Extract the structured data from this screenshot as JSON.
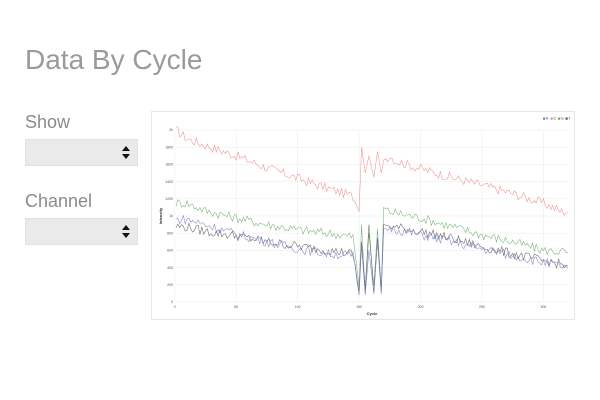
{
  "page": {
    "title": "Data By Cycle"
  },
  "controls": {
    "show": {
      "label": "Show",
      "value": ""
    },
    "channel": {
      "label": "Channel",
      "value": ""
    }
  },
  "colors": {
    "A": "#7777cc",
    "C": "#ee8888",
    "G": "#66aa66",
    "T": "#555555",
    "grid": "#eeeeee"
  },
  "chart_data": {
    "type": "line",
    "title": "",
    "xlabel": "Cycle",
    "ylabel": "Intensity",
    "xlim": [
      1,
      320
    ],
    "ylim": [
      0,
      2000
    ],
    "x_ticks": [
      0,
      50,
      100,
      150,
      200,
      250,
      300
    ],
    "y_ticks": [
      0,
      200,
      400,
      600,
      800,
      1000,
      1200,
      1400,
      1600,
      1800,
      2000
    ],
    "y_tick_labels": [
      "0",
      "200",
      "400",
      "600",
      "800",
      "1k",
      "1200",
      "1400",
      "1600",
      "1800",
      "2k"
    ],
    "legend": {
      "position": "top-right",
      "entries": [
        "A",
        "C",
        "G",
        "T"
      ]
    },
    "series": [
      {
        "name": "C",
        "color": "#ee8888",
        "points": [
          [
            1,
            2000
          ],
          [
            10,
            1900
          ],
          [
            25,
            1820
          ],
          [
            50,
            1700
          ],
          [
            75,
            1560
          ],
          [
            100,
            1440
          ],
          [
            125,
            1320
          ],
          [
            145,
            1230
          ],
          [
            150,
            1050
          ],
          [
            152,
            1800
          ],
          [
            155,
            1500
          ],
          [
            158,
            1700
          ],
          [
            162,
            1450
          ],
          [
            165,
            1750
          ],
          [
            168,
            1500
          ],
          [
            170,
            1650
          ],
          [
            175,
            1700
          ],
          [
            180,
            1640
          ],
          [
            200,
            1550
          ],
          [
            225,
            1450
          ],
          [
            250,
            1360
          ],
          [
            275,
            1260
          ],
          [
            300,
            1150
          ],
          [
            315,
            1050
          ],
          [
            320,
            1050
          ]
        ]
      },
      {
        "name": "G",
        "color": "#66aa66",
        "points": [
          [
            1,
            1150
          ],
          [
            10,
            1150
          ],
          [
            25,
            1060
          ],
          [
            50,
            980
          ],
          [
            75,
            900
          ],
          [
            100,
            840
          ],
          [
            125,
            800
          ],
          [
            145,
            760
          ],
          [
            150,
            180
          ],
          [
            152,
            900
          ],
          [
            155,
            100
          ],
          [
            158,
            800
          ],
          [
            162,
            200
          ],
          [
            165,
            850
          ],
          [
            168,
            150
          ],
          [
            170,
            1100
          ],
          [
            175,
            1050
          ],
          [
            200,
            980
          ],
          [
            225,
            880
          ],
          [
            250,
            780
          ],
          [
            275,
            700
          ],
          [
            300,
            600
          ],
          [
            320,
            580
          ]
        ]
      },
      {
        "name": "T",
        "color": "#555555",
        "points": [
          [
            1,
            880
          ],
          [
            10,
            870
          ],
          [
            25,
            820
          ],
          [
            50,
            770
          ],
          [
            75,
            700
          ],
          [
            100,
            650
          ],
          [
            125,
            600
          ],
          [
            145,
            560
          ],
          [
            150,
            120
          ],
          [
            152,
            700
          ],
          [
            155,
            150
          ],
          [
            158,
            900
          ],
          [
            162,
            100
          ],
          [
            165,
            750
          ],
          [
            168,
            120
          ],
          [
            170,
            900
          ],
          [
            175,
            880
          ],
          [
            200,
            820
          ],
          [
            225,
            740
          ],
          [
            250,
            640
          ],
          [
            275,
            560
          ],
          [
            300,
            480
          ],
          [
            320,
            420
          ]
        ]
      },
      {
        "name": "A",
        "color": "#7777cc",
        "points": [
          [
            1,
            960
          ],
          [
            10,
            960
          ],
          [
            25,
            900
          ],
          [
            50,
            790
          ],
          [
            75,
            700
          ],
          [
            100,
            620
          ],
          [
            125,
            560
          ],
          [
            145,
            540
          ],
          [
            150,
            80
          ],
          [
            152,
            650
          ],
          [
            155,
            80
          ],
          [
            158,
            600
          ],
          [
            162,
            100
          ],
          [
            165,
            700
          ],
          [
            168,
            90
          ],
          [
            170,
            850
          ],
          [
            175,
            860
          ],
          [
            200,
            780
          ],
          [
            225,
            700
          ],
          [
            250,
            620
          ],
          [
            275,
            540
          ],
          [
            300,
            460
          ],
          [
            320,
            400
          ]
        ]
      }
    ]
  }
}
